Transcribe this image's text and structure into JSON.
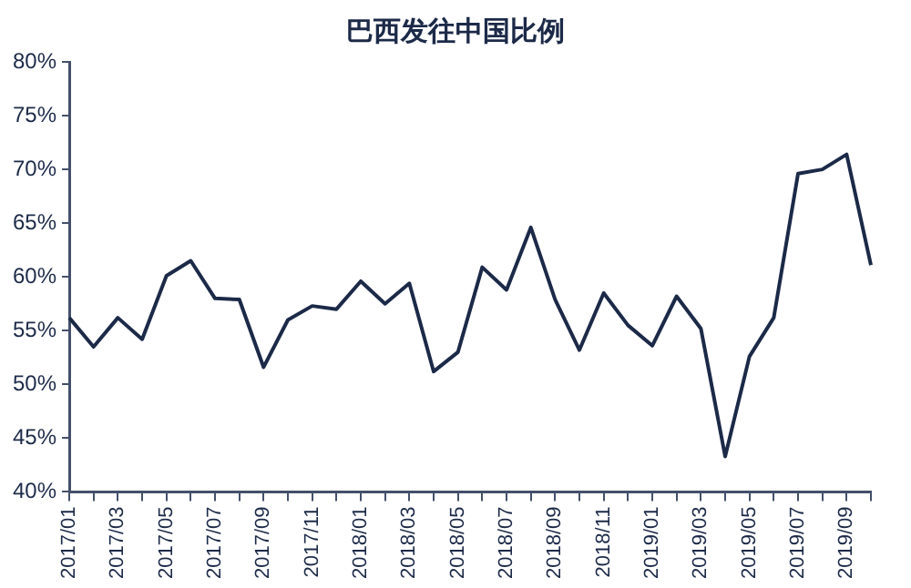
{
  "chart_data": {
    "type": "line",
    "title": "巴西发往中国比例",
    "categories": [
      "2017/01",
      null,
      "2017/03",
      null,
      "2017/05",
      null,
      "2017/07",
      null,
      "2017/09",
      null,
      "2017/11",
      null,
      "2018/01",
      null,
      "2018/03",
      null,
      "2018/05",
      null,
      "2018/07",
      null,
      "2018/09",
      null,
      "2018/11",
      null,
      "2019/01",
      null,
      "2019/03",
      null,
      "2019/05",
      null,
      "2019/07",
      null,
      "2019/09",
      null
    ],
    "series": [
      {
        "color": "#1c2a48",
        "values": [
          56.2,
          53.5,
          56.2,
          54.2,
          60.1,
          61.5,
          58.0,
          57.9,
          51.6,
          56.0,
          57.3,
          57.0,
          59.6,
          57.5,
          59.4,
          51.2,
          53.0,
          60.9,
          58.8,
          64.6,
          57.9,
          53.2,
          58.5,
          55.5,
          53.6,
          58.2,
          55.2,
          43.3,
          52.6,
          56.2,
          69.6,
          70.0,
          71.4,
          61.1
        ]
      }
    ],
    "ylim": [
      40,
      80
    ],
    "yticks": [
      {
        "value": 40,
        "label": "40%"
      },
      {
        "value": 45,
        "label": "45%"
      },
      {
        "value": 50,
        "label": "50%"
      },
      {
        "value": 55,
        "label": "55%"
      },
      {
        "value": 60,
        "label": "60%"
      },
      {
        "value": 65,
        "label": "65%"
      },
      {
        "value": 70,
        "label": "70%"
      },
      {
        "value": 75,
        "label": "75%"
      },
      {
        "value": 80,
        "label": "80%"
      }
    ],
    "grid": false,
    "legend": false,
    "marker": "none",
    "line_style": "solid"
  }
}
